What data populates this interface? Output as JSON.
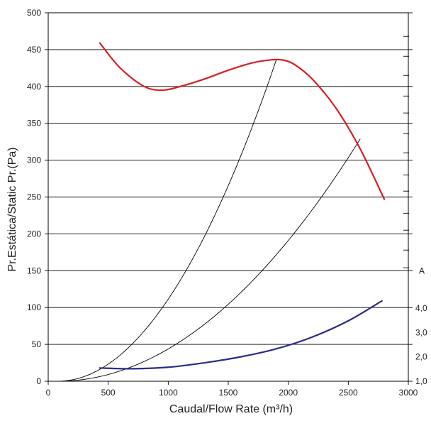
{
  "chart_data": {
    "type": "line",
    "xlabel": "Caudal/Flow Rate (m³/h)",
    "ylabel": "Pr.Estática/Static Pr.(Pa)",
    "xlim": [
      0,
      3000
    ],
    "ylim": [
      0,
      500
    ],
    "x_ticks": [
      "0",
      "500",
      "1000",
      "1500",
      "2000",
      "2500",
      "3000"
    ],
    "y_ticks": [
      "0",
      "50",
      "100",
      "150",
      "200",
      "250",
      "300",
      "350",
      "400",
      "450",
      "500"
    ],
    "grid": "horizontal",
    "right_axis": {
      "unit_label": "A",
      "ticks": [
        {
          "label": "1,0",
          "y": 0
        },
        {
          "label": "2,0",
          "y": 33
        },
        {
          "label": "3,0",
          "y": 66
        },
        {
          "label": "4,0",
          "y": 99
        }
      ]
    },
    "series": [
      {
        "color": "#d81e24",
        "role": "static-pressure",
        "x": [
          430,
          600,
          800,
          950,
          1100,
          1300,
          1500,
          1700,
          1850,
          1950,
          2050,
          2200,
          2400,
          2600,
          2800
        ],
        "y": [
          459,
          425,
          400,
          395,
          400,
          410,
          422,
          432,
          436,
          436,
          430,
          410,
          370,
          315,
          247
        ]
      },
      {
        "color": "#2b2b87",
        "role": "current",
        "x": [
          430,
          700,
          1000,
          1300,
          1600,
          1900,
          2200,
          2500,
          2780
        ],
        "y": [
          18,
          17,
          19,
          25,
          33,
          44,
          60,
          82,
          109
        ]
      }
    ],
    "system_curves": [
      {
        "color": "#000000",
        "x_end": 1900,
        "y_end": 436
      },
      {
        "color": "#000000",
        "x_end": 2600,
        "y_end": 329
      }
    ]
  }
}
